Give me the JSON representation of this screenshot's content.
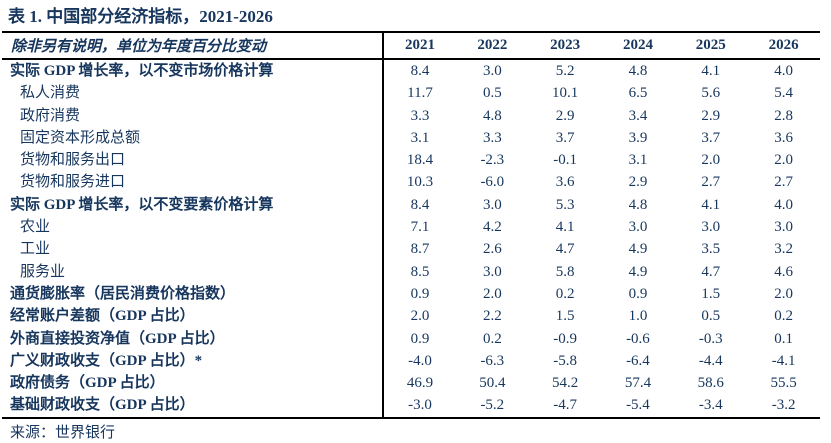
{
  "title": "表 1. 中国部分经济指标，2021-2026",
  "table": {
    "subtitle": "除非另有说明，单位为年度百分比变动",
    "years": [
      "2021",
      "2022",
      "2023",
      "2024",
      "2025",
      "2026"
    ],
    "rows": [
      {
        "label": "实际 GDP 增长率，以不变市场价格计算",
        "bold": true,
        "indent": false,
        "values": [
          "8.4",
          "3.0",
          "5.2",
          "4.8",
          "4.1",
          "4.0"
        ]
      },
      {
        "label": "私人消费",
        "bold": false,
        "indent": true,
        "values": [
          "11.7",
          "0.5",
          "10.1",
          "6.5",
          "5.6",
          "5.4"
        ]
      },
      {
        "label": "政府消费",
        "bold": false,
        "indent": true,
        "values": [
          "3.3",
          "4.8",
          "2.9",
          "3.4",
          "2.9",
          "2.8"
        ]
      },
      {
        "label": "固定资本形成总额",
        "bold": false,
        "indent": true,
        "values": [
          "3.1",
          "3.3",
          "3.7",
          "3.9",
          "3.7",
          "3.6"
        ]
      },
      {
        "label": "货物和服务出口",
        "bold": false,
        "indent": true,
        "values": [
          "18.4",
          "-2.3",
          "-0.1",
          "3.1",
          "2.0",
          "2.0"
        ]
      },
      {
        "label": "货物和服务进口",
        "bold": false,
        "indent": true,
        "values": [
          "10.3",
          "-6.0",
          "3.6",
          "2.9",
          "2.7",
          "2.7"
        ]
      },
      {
        "label": "实际 GDP 增长率，以不变要素价格计算",
        "bold": true,
        "indent": false,
        "values": [
          "8.4",
          "3.0",
          "5.3",
          "4.8",
          "4.1",
          "4.0"
        ]
      },
      {
        "label": "农业",
        "bold": false,
        "indent": true,
        "values": [
          "7.1",
          "4.2",
          "4.1",
          "3.0",
          "3.0",
          "3.0"
        ]
      },
      {
        "label": "工业",
        "bold": false,
        "indent": true,
        "values": [
          "8.7",
          "2.6",
          "4.7",
          "4.9",
          "3.5",
          "3.2"
        ]
      },
      {
        "label": "服务业",
        "bold": false,
        "indent": true,
        "values": [
          "8.5",
          "3.0",
          "5.8",
          "4.9",
          "4.7",
          "4.6"
        ]
      },
      {
        "label": "通货膨胀率（居民消费价格指数）",
        "bold": true,
        "indent": false,
        "values": [
          "0.9",
          "2.0",
          "0.2",
          "0.9",
          "1.5",
          "2.0"
        ]
      },
      {
        "label": "经常账户差额（GDP 占比）",
        "bold": true,
        "indent": false,
        "values": [
          "2.0",
          "2.2",
          "1.5",
          "1.0",
          "0.5",
          "0.2"
        ]
      },
      {
        "label": "外商直接投资净值（GDP 占比）",
        "bold": true,
        "indent": false,
        "values": [
          "0.9",
          "0.2",
          "-0.9",
          "-0.6",
          "-0.3",
          "0.1"
        ]
      },
      {
        "label": "广义财政收支（GDP 占比）*",
        "bold": true,
        "indent": false,
        "values": [
          "-4.0",
          "-6.3",
          "-5.8",
          "-6.4",
          "-4.4",
          "-4.1"
        ]
      },
      {
        "label": "政府债务（GDP 占比）",
        "bold": true,
        "indent": false,
        "values": [
          "46.9",
          "50.4",
          "54.2",
          "57.4",
          "58.6",
          "55.5"
        ]
      },
      {
        "label": "基础财政收支（GDP 占比）",
        "bold": true,
        "indent": false,
        "values": [
          "-3.0",
          "-5.2",
          "-4.7",
          "-5.4",
          "-3.4",
          "-3.2"
        ]
      }
    ],
    "source": "来源：世界银行"
  },
  "colors": {
    "text_navy": "#17365D",
    "rule_black": "#000000"
  }
}
